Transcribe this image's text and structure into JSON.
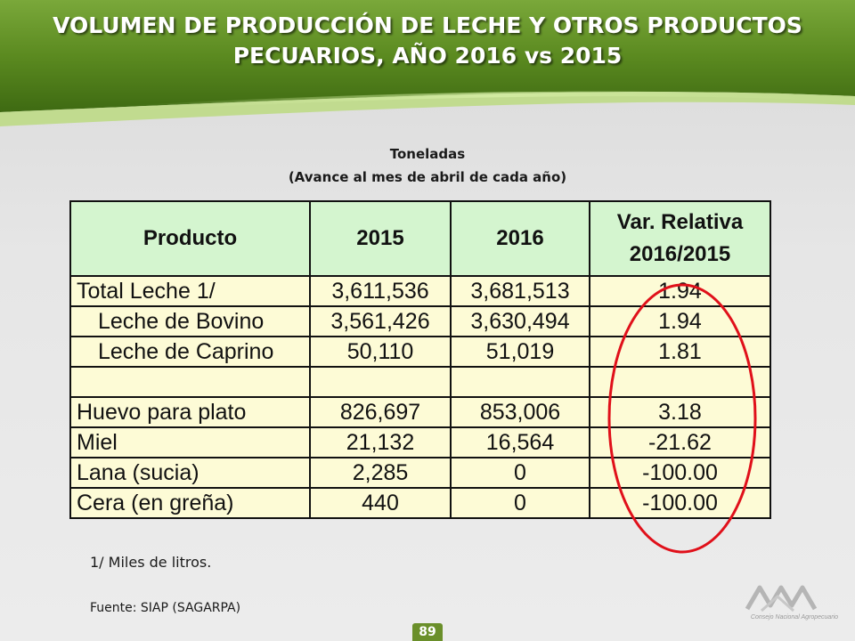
{
  "header": {
    "title_line1": "VOLUMEN DE PRODUCCIÓN DE LECHE Y OTROS PRODUCTOS",
    "title_line2": "PECUARIOS,  AÑO 2016 vs 2015"
  },
  "subtitle": {
    "line1": "Toneladas",
    "line2": "(Avance al mes de abril de cada año)"
  },
  "table": {
    "headers": [
      "Producto",
      "2015",
      "2016",
      "Var. Relativa",
      "2016/2015"
    ],
    "rows": [
      [
        "Total Leche 1/",
        "3,611,536",
        "3,681,513",
        "1.94"
      ],
      [
        "Leche de Bovino",
        "3,561,426",
        "3,630,494",
        "1.94"
      ],
      [
        "Leche de Caprino",
        "50,110",
        "51,019",
        "1.81"
      ],
      [
        "",
        "",
        "",
        ""
      ],
      [
        "Huevo para plato",
        "826,697",
        "853,006",
        "3.18"
      ],
      [
        "Miel",
        "21,132",
        "16,564",
        "-21.62"
      ],
      [
        "Lana (sucia)",
        "2,285",
        "0",
        "-100.00"
      ],
      [
        "Cera (en greña)",
        "440",
        "0",
        "-100.00"
      ]
    ]
  },
  "note": "1/ Miles de litros.",
  "source": "Fuente: SIAP (SAGARPA)",
  "page_number": "89",
  "logo_text": "Consejo Nacional Agropecuario",
  "colors": {
    "header_green": "#5e8a1f",
    "header_green_light": "#9cc24a",
    "table_header_bg": "#d4f5cf",
    "table_body_bg": "#fdfbd6",
    "ellipse_red": "#e0101a"
  }
}
